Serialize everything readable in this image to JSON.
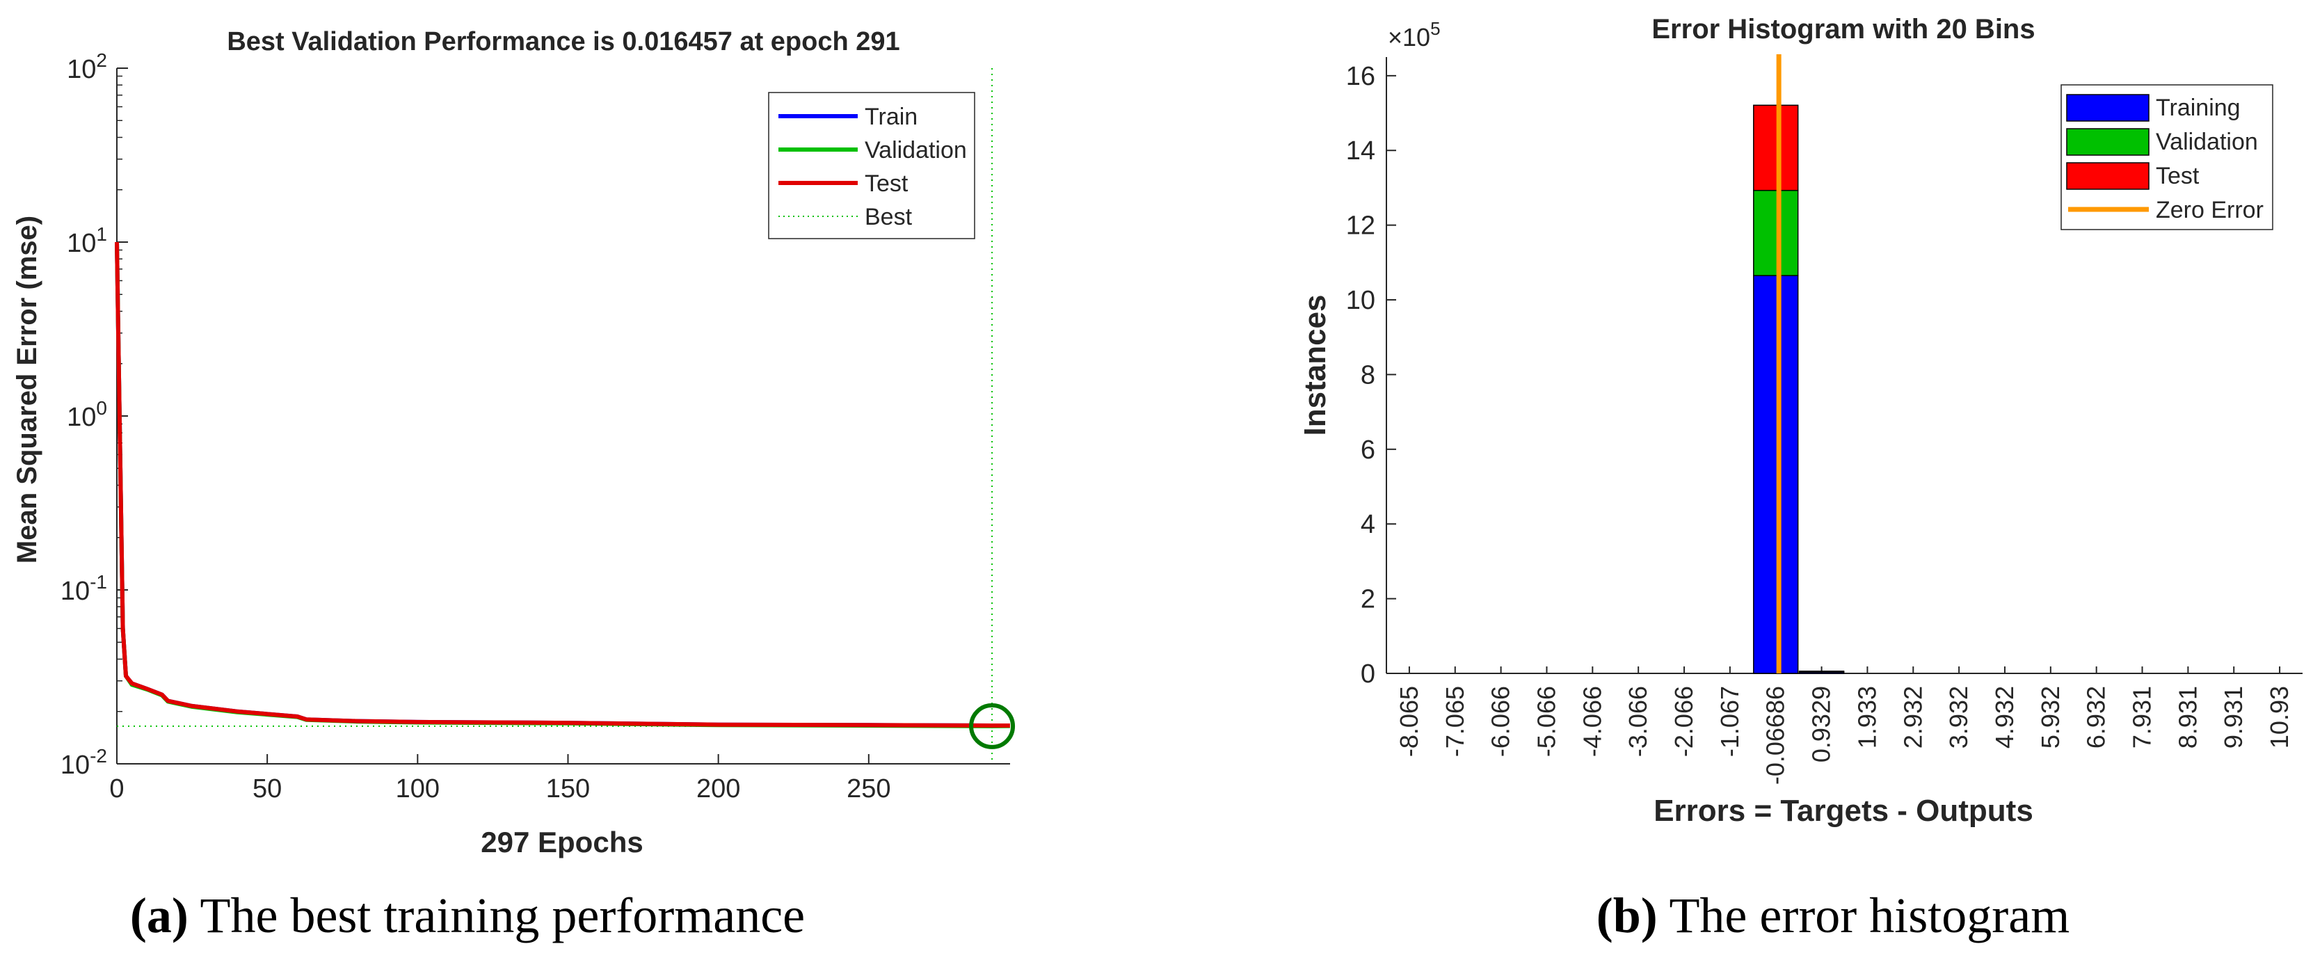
{
  "chart_data": [
    {
      "type": "line",
      "title": "Best Validation Performance is 0.016457 at epoch 291",
      "xlabel": "297 Epochs",
      "ylabel": "Mean Squared Error  (mse)",
      "yscale": "log",
      "xlim": [
        0,
        297
      ],
      "ylim": [
        0.01,
        100
      ],
      "x_ticks": [
        0,
        50,
        100,
        150,
        200,
        250
      ],
      "y_ticks": [
        {
          "base": "10",
          "exp": "-2",
          "value": 0.01
        },
        {
          "base": "10",
          "exp": "-1",
          "value": 0.1
        },
        {
          "base": "10",
          "exp": "0",
          "value": 1
        },
        {
          "base": "10",
          "exp": "1",
          "value": 10
        },
        {
          "base": "10",
          "exp": "2",
          "value": 100
        }
      ],
      "best_epoch": 291,
      "best_value": 0.016457,
      "legend_location": "top-right",
      "series": [
        {
          "name": "Train",
          "color": "#0000ff",
          "x": [
            0,
            2,
            3,
            5,
            10,
            15,
            17,
            25,
            40,
            60,
            63,
            80,
            100,
            150,
            200,
            250,
            291,
            297
          ],
          "y": [
            10,
            0.06,
            0.032,
            0.029,
            0.027,
            0.025,
            0.023,
            0.0215,
            0.02,
            0.0187,
            0.018,
            0.0176,
            0.0174,
            0.0172,
            0.0168,
            0.0167,
            0.0166,
            0.0166
          ]
        },
        {
          "name": "Validation",
          "color": "#00c000",
          "x": [
            0,
            2,
            3,
            5,
            10,
            15,
            17,
            25,
            40,
            60,
            63,
            80,
            100,
            150,
            200,
            250,
            291,
            297
          ],
          "y": [
            10,
            0.06,
            0.032,
            0.0285,
            0.0268,
            0.0248,
            0.0228,
            0.0213,
            0.0198,
            0.0186,
            0.0179,
            0.0175,
            0.0173,
            0.0171,
            0.0167,
            0.0166,
            0.016457,
            0.0165
          ]
        },
        {
          "name": "Test",
          "color": "#e00000",
          "x": [
            0,
            2,
            3,
            5,
            10,
            15,
            17,
            25,
            40,
            60,
            63,
            80,
            100,
            150,
            200,
            250,
            291,
            297
          ],
          "y": [
            10,
            0.06,
            0.032,
            0.029,
            0.027,
            0.025,
            0.023,
            0.0215,
            0.02,
            0.0187,
            0.018,
            0.0176,
            0.0174,
            0.0172,
            0.0168,
            0.0167,
            0.0166,
            0.0166
          ]
        },
        {
          "name": "Best",
          "color": "#00c000",
          "style": "dotted"
        }
      ],
      "caption_label": "(a)",
      "caption_text": " The best training performance"
    },
    {
      "type": "bar",
      "stacked": true,
      "title": "Error Histogram with 20 Bins",
      "xlabel": "Errors = Targets - Outputs",
      "ylabel": "Instances",
      "y_multiplier": "×10",
      "y_multiplier_exp": "5",
      "ylim": [
        0,
        16.5
      ],
      "y_ticks": [
        0,
        2,
        4,
        6,
        8,
        10,
        12,
        14,
        16
      ],
      "categories": [
        "-8.065",
        "-7.065",
        "-6.066",
        "-5.066",
        "-4.066",
        "-3.066",
        "-2.066",
        "-1.067",
        "-0.06686",
        "0.9329",
        "1.933",
        "2.932",
        "3.932",
        "4.932",
        "5.932",
        "6.932",
        "7.931",
        "8.931",
        "9.931",
        "10.93"
      ],
      "series": [
        {
          "name": "Training",
          "color": "#0000ff",
          "values": [
            0,
            0,
            0,
            0,
            0,
            0,
            0,
            0,
            10.65,
            0.04,
            0,
            0,
            0,
            0,
            0,
            0,
            0,
            0,
            0,
            0
          ]
        },
        {
          "name": "Validation",
          "color": "#00c000",
          "values": [
            0,
            0,
            0,
            0,
            0,
            0,
            0,
            0,
            2.28,
            0.01,
            0,
            0,
            0,
            0,
            0,
            0,
            0,
            0,
            0,
            0
          ]
        },
        {
          "name": "Test",
          "color": "#ff0000",
          "values": [
            0,
            0,
            0,
            0,
            0,
            0,
            0,
            0,
            2.28,
            0.01,
            0,
            0,
            0,
            0,
            0,
            0,
            0,
            0,
            0,
            0
          ]
        }
      ],
      "zero_error": {
        "name": "Zero Error",
        "color": "#ff9900",
        "value": 0
      },
      "legend_location": "top-right",
      "caption_label": "(b)",
      "caption_text": " The error histogram"
    }
  ]
}
